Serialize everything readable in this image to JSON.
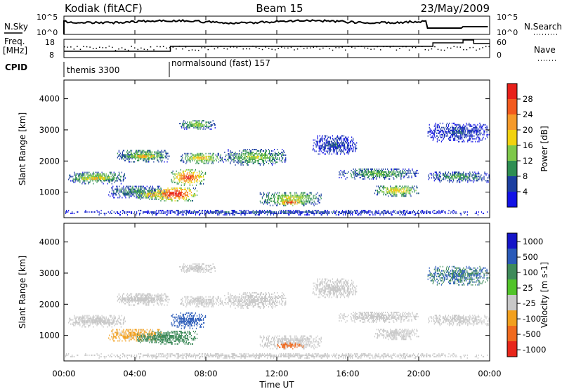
{
  "chart_data": {
    "type": "heatmap",
    "header": {
      "radar": "Kodiak (fitACF)",
      "beam": "Beam 15",
      "date": "23/May/2009"
    },
    "noise_panel": {
      "left_label": "N.Sky",
      "right_label": "N.Search",
      "left_ticks": [
        "10^5",
        "10^0"
      ],
      "right_ticks": [
        "10^5",
        "10^0"
      ]
    },
    "freq_panel": {
      "left_label_line1": "Freq.",
      "left_label_line2": "[MHz]",
      "right_label": "Nave",
      "left_ticks": [
        "18",
        "8"
      ],
      "right_ticks": [
        "60",
        "0"
      ]
    },
    "cpid": {
      "label": "CPID",
      "segments": [
        {
          "name": "themis 3300",
          "start_hour": 0
        },
        {
          "name": "normalsound (fast) 157",
          "start_hour": 6
        }
      ]
    },
    "x_axis": {
      "label": "Time UT",
      "range_hours": [
        0,
        24
      ],
      "tick_labels": [
        "00:00",
        "04:00",
        "08:00",
        "12:00",
        "16:00",
        "20:00",
        "00:00"
      ]
    },
    "y_axis": {
      "label": "Slant Range [km]",
      "range": [
        180,
        4600
      ],
      "tick_values": [
        1000,
        2000,
        3000,
        4000
      ],
      "tick_labels": [
        "1000",
        "2000",
        "3000",
        "4000"
      ]
    },
    "power_panel": {
      "colorbar_label": "Power [dB]",
      "colorbar_ticks": [
        "28",
        "24",
        "20",
        "16",
        "12",
        "8",
        "4"
      ],
      "colorbar_colors": [
        "#e8201a",
        "#f25a1e",
        "#f59a2a",
        "#f2d20f",
        "#7ec84a",
        "#2e8e52",
        "#1c3fa0",
        "#1212e6"
      ]
    },
    "velocity_panel": {
      "colorbar_label": "Velocity [m s-1]",
      "colorbar_ticks": [
        "1000",
        "500",
        "100",
        "25",
        "-25",
        "-100",
        "-500",
        "-1000"
      ],
      "colorbar_colors": [
        "#1515c8",
        "#2a5ab8",
        "#3e8a5a",
        "#52c42a",
        "#c8c8c8",
        "#f2a01e",
        "#f06a1e",
        "#e8261a"
      ]
    },
    "echo_regions": [
      {
        "t0": 0.2,
        "t1": 3.5,
        "r0": 1250,
        "r1": 1650,
        "power": 14,
        "vel": 0
      },
      {
        "t0": 0.5,
        "t1": 3.0,
        "r0": 1350,
        "r1": 1480,
        "power": 22,
        "vel": 0
      },
      {
        "t0": 3.0,
        "t1": 6.0,
        "r0": 1950,
        "r1": 2350,
        "power": 14,
        "vel": 0
      },
      {
        "t0": 3.5,
        "t1": 5.5,
        "r0": 2050,
        "r1": 2200,
        "power": 22,
        "vel": 0
      },
      {
        "t0": 2.5,
        "t1": 5.5,
        "r0": 800,
        "r1": 1200,
        "power": 10,
        "vel": -40
      },
      {
        "t0": 4.0,
        "t1": 6.0,
        "r0": 750,
        "r1": 1050,
        "power": 20,
        "vel": 200
      },
      {
        "t0": 5.0,
        "t1": 7.5,
        "r0": 700,
        "r1": 1150,
        "power": 30,
        "vel": 200
      },
      {
        "t0": 6.0,
        "t1": 8.0,
        "r0": 1200,
        "r1": 1700,
        "power": 26,
        "vel": 600
      },
      {
        "t0": 6.5,
        "t1": 9.0,
        "r0": 1900,
        "r1": 2250,
        "power": 18,
        "vel": 0
      },
      {
        "t0": 9.0,
        "t1": 12.5,
        "r0": 1850,
        "r1": 2350,
        "power": 14,
        "vel": 0
      },
      {
        "t0": 6.5,
        "t1": 8.5,
        "r0": 3000,
        "r1": 3300,
        "power": 14,
        "vel": 0
      },
      {
        "t0": 11.0,
        "t1": 14.5,
        "r0": 550,
        "r1": 1000,
        "power": 16,
        "vel": 0
      },
      {
        "t0": 12.0,
        "t1": 13.5,
        "r0": 550,
        "r1": 750,
        "power": 28,
        "vel": -200
      },
      {
        "t0": 15.5,
        "t1": 20.0,
        "r0": 1400,
        "r1": 1750,
        "power": 12,
        "vel": 0
      },
      {
        "t0": 17.5,
        "t1": 20.0,
        "r0": 850,
        "r1": 1200,
        "power": 18,
        "vel": 0
      },
      {
        "t0": 20.5,
        "t1": 24.0,
        "r0": 1300,
        "r1": 1650,
        "power": 10,
        "vel": 0
      },
      {
        "t0": 20.5,
        "t1": 24.0,
        "r0": 2600,
        "r1": 3200,
        "power": 6,
        "vel": 300
      },
      {
        "t0": 14.0,
        "t1": 16.5,
        "r0": 2200,
        "r1": 2800,
        "power": 6,
        "vel": 0
      },
      {
        "t0": 0.0,
        "t1": 24.0,
        "r0": 250,
        "r1": 400,
        "power": 6,
        "vel": 0
      }
    ]
  }
}
